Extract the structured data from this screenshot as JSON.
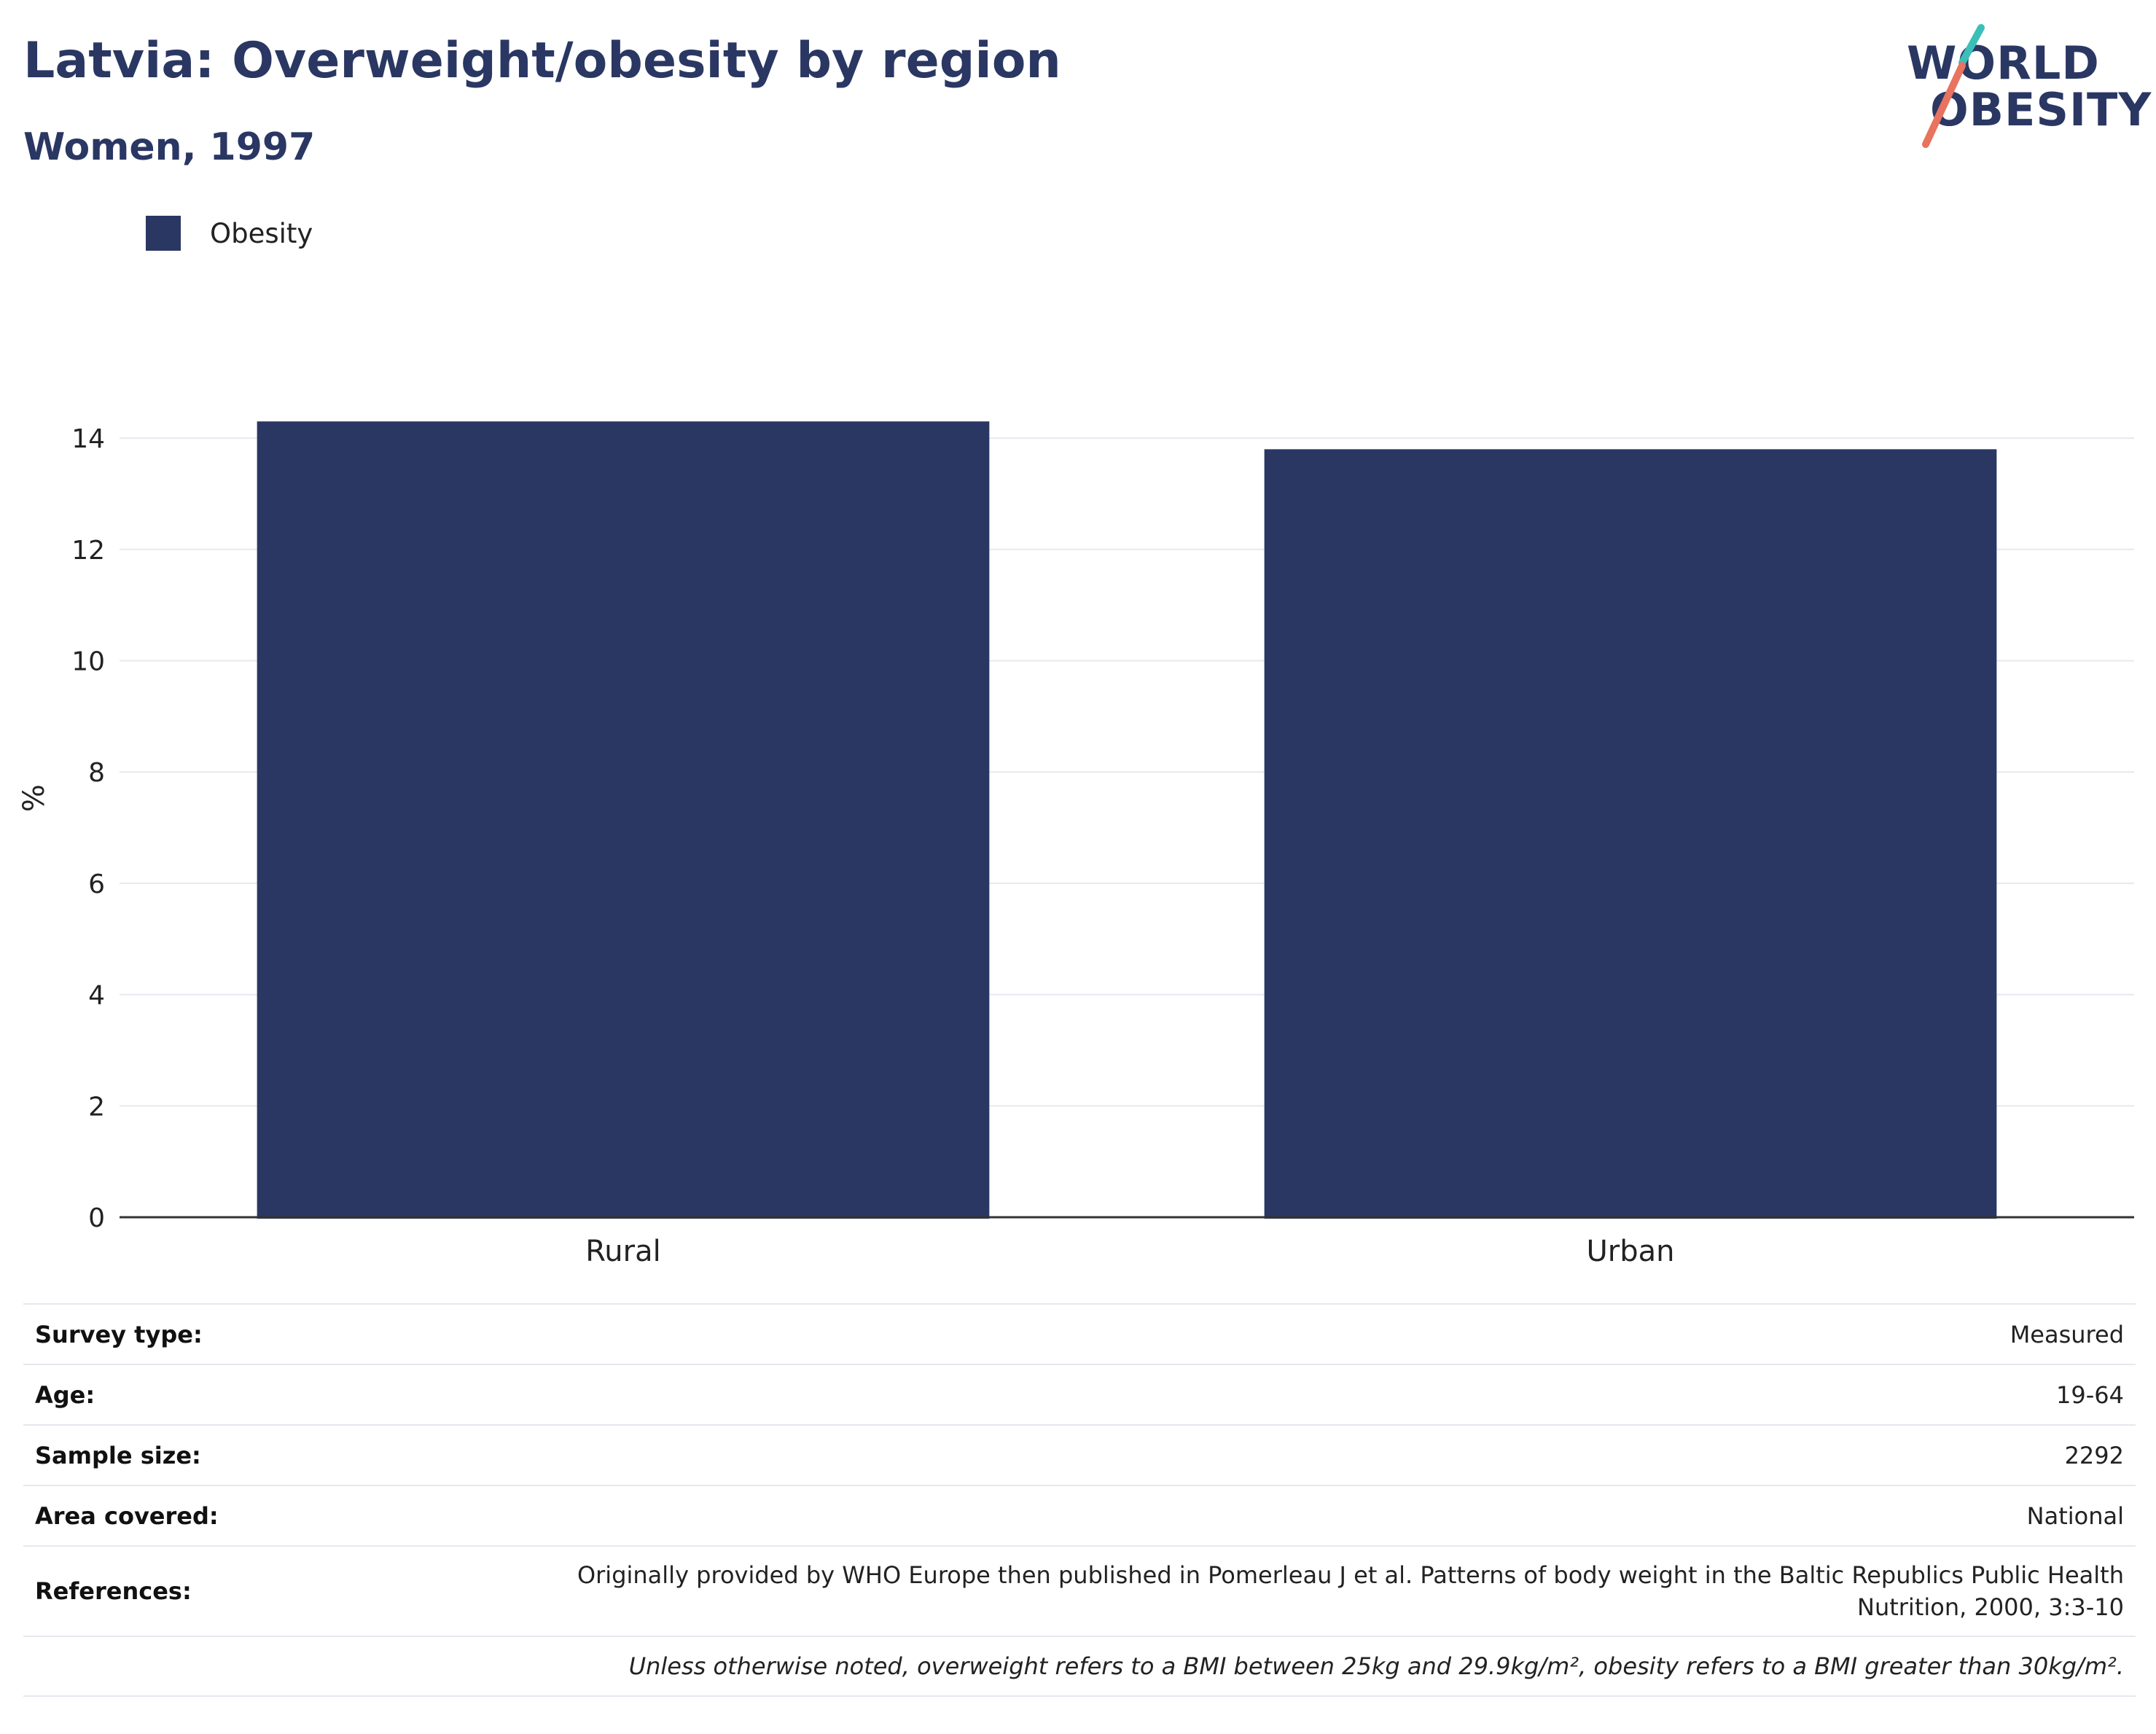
{
  "title": "Latvia: Overweight/obesity by region",
  "subtitle": "Women, 1997",
  "logo": {
    "line1": "WORLD",
    "line2": "OBESITY",
    "color_dark": "#2a3763",
    "color_teal": "#3bbfb9",
    "color_coral": "#e8735f"
  },
  "colors": {
    "bar": "#2a3763",
    "grid": "#e8e8ee",
    "axis": "#333333"
  },
  "chart_data": {
    "type": "bar",
    "categories": [
      "Rural",
      "Urban"
    ],
    "series": [
      {
        "name": "Obesity",
        "values": [
          14.3,
          13.8
        ]
      }
    ],
    "xlabel": "",
    "ylabel": "%",
    "ylim": [
      0,
      14.8
    ],
    "yticks": [
      0,
      2,
      4,
      6,
      8,
      10,
      12,
      14
    ],
    "grid": true,
    "legend": "top-left"
  },
  "meta": {
    "survey_type": {
      "label": "Survey type:",
      "value": "Measured"
    },
    "age": {
      "label": "Age:",
      "value": "19-64"
    },
    "sample_size": {
      "label": "Sample size:",
      "value": "2292"
    },
    "area_covered": {
      "label": "Area covered:",
      "value": "National"
    },
    "references": {
      "label": "References:",
      "value_line1": "Originally provided by WHO Europe then published in Pomerleau J et al. Patterns of body weight in the Baltic Republics Public Health",
      "value_line2": "Nutrition, 2000, 3:3-10"
    }
  },
  "note": "Unless otherwise noted, overweight refers to a BMI between 25kg and 29.9kg/m², obesity refers to a BMI greater than 30kg/m²."
}
